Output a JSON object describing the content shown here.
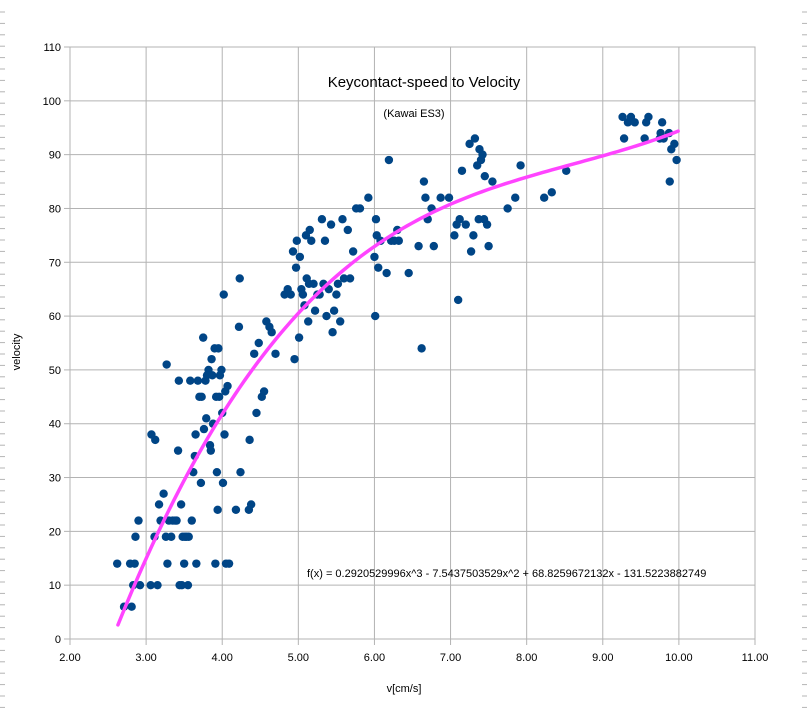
{
  "chart_data": {
    "type": "scatter",
    "title": "Keycontact-speed to Velocity",
    "subtitle": "(Kawai ES3)",
    "xlabel": "v[cm/s]",
    "ylabel": "velocity",
    "xlim": [
      2.0,
      11.0
    ],
    "ylim": [
      0,
      110
    ],
    "x_ticks": [
      "2.00",
      "3.00",
      "4.00",
      "5.00",
      "6.00",
      "7.00",
      "8.00",
      "9.00",
      "10.00",
      "11.00"
    ],
    "y_ticks": [
      "0",
      "10",
      "20",
      "30",
      "40",
      "50",
      "60",
      "70",
      "80",
      "90",
      "100",
      "110"
    ],
    "grid": true,
    "legend": "none",
    "annotation": "f(x) = 0.2920529996x^3 - 7.5437503529x^2 + 68.8259672132x - 131.5223882749",
    "marker_color": "#004586",
    "trendline_color": "#ff44ff",
    "trendline": {
      "type": "polynomial",
      "coefficients": [
        0.2920529996,
        -7.5437503529,
        68.8259672132,
        -131.5223882749
      ],
      "x_range": [
        2.63,
        9.99
      ]
    },
    "points": [
      [
        2.62,
        14
      ],
      [
        2.71,
        6
      ],
      [
        2.79,
        14
      ],
      [
        2.81,
        6
      ],
      [
        2.83,
        10
      ],
      [
        2.85,
        14
      ],
      [
        2.86,
        19
      ],
      [
        2.9,
        22
      ],
      [
        2.92,
        10
      ],
      [
        3.06,
        10
      ],
      [
        3.07,
        38
      ],
      [
        3.11,
        19
      ],
      [
        3.12,
        37
      ],
      [
        3.15,
        10
      ],
      [
        3.17,
        25
      ],
      [
        3.19,
        22
      ],
      [
        3.23,
        27
      ],
      [
        3.26,
        19
      ],
      [
        3.27,
        51
      ],
      [
        3.28,
        14
      ],
      [
        3.3,
        22
      ],
      [
        3.33,
        19
      ],
      [
        3.35,
        22
      ],
      [
        3.38,
        22
      ],
      [
        3.4,
        22
      ],
      [
        3.42,
        35
      ],
      [
        3.43,
        48
      ],
      [
        3.44,
        10
      ],
      [
        3.46,
        25
      ],
      [
        3.47,
        10
      ],
      [
        3.48,
        19
      ],
      [
        3.5,
        14
      ],
      [
        3.51,
        19
      ],
      [
        3.53,
        19
      ],
      [
        3.55,
        10
      ],
      [
        3.56,
        19
      ],
      [
        3.58,
        48
      ],
      [
        3.6,
        22
      ],
      [
        3.62,
        31
      ],
      [
        3.64,
        34
      ],
      [
        3.65,
        38
      ],
      [
        3.66,
        14
      ],
      [
        3.68,
        48
      ],
      [
        3.7,
        45
      ],
      [
        3.72,
        29
      ],
      [
        3.73,
        45
      ],
      [
        3.75,
        56
      ],
      [
        3.76,
        39
      ],
      [
        3.78,
        48
      ],
      [
        3.79,
        41
      ],
      [
        3.8,
        49
      ],
      [
        3.82,
        50
      ],
      [
        3.84,
        36
      ],
      [
        3.85,
        35
      ],
      [
        3.86,
        52
      ],
      [
        3.87,
        49
      ],
      [
        3.88,
        40
      ],
      [
        3.9,
        54
      ],
      [
        3.91,
        14
      ],
      [
        3.92,
        45
      ],
      [
        3.93,
        31
      ],
      [
        3.94,
        24
      ],
      [
        3.95,
        54
      ],
      [
        3.96,
        45
      ],
      [
        3.97,
        49
      ],
      [
        3.99,
        50
      ],
      [
        4.0,
        42
      ],
      [
        4.01,
        29
      ],
      [
        4.02,
        64
      ],
      [
        4.03,
        38
      ],
      [
        4.04,
        46
      ],
      [
        4.05,
        14
      ],
      [
        4.07,
        47
      ],
      [
        4.09,
        14
      ],
      [
        4.18,
        24
      ],
      [
        4.22,
        58
      ],
      [
        4.23,
        67
      ],
      [
        4.24,
        31
      ],
      [
        4.35,
        24
      ],
      [
        4.36,
        37
      ],
      [
        4.38,
        25
      ],
      [
        4.42,
        53
      ],
      [
        4.45,
        42
      ],
      [
        4.48,
        55
      ],
      [
        4.52,
        45
      ],
      [
        4.55,
        46
      ],
      [
        4.58,
        59
      ],
      [
        4.62,
        58
      ],
      [
        4.65,
        57
      ],
      [
        4.7,
        53
      ],
      [
        4.82,
        64
      ],
      [
        4.86,
        65
      ],
      [
        4.9,
        64
      ],
      [
        4.93,
        72
      ],
      [
        4.95,
        52
      ],
      [
        4.97,
        69
      ],
      [
        4.98,
        74
      ],
      [
        5.01,
        56
      ],
      [
        5.02,
        71
      ],
      [
        5.04,
        65
      ],
      [
        5.06,
        64
      ],
      [
        5.08,
        62
      ],
      [
        5.1,
        75
      ],
      [
        5.11,
        67
      ],
      [
        5.13,
        59
      ],
      [
        5.14,
        66
      ],
      [
        5.15,
        76
      ],
      [
        5.17,
        74
      ],
      [
        5.2,
        66
      ],
      [
        5.22,
        61
      ],
      [
        5.25,
        64
      ],
      [
        5.28,
        64
      ],
      [
        5.31,
        78
      ],
      [
        5.33,
        66
      ],
      [
        5.35,
        74
      ],
      [
        5.37,
        60
      ],
      [
        5.4,
        65
      ],
      [
        5.43,
        77
      ],
      [
        5.45,
        57
      ],
      [
        5.47,
        61
      ],
      [
        5.5,
        64
      ],
      [
        5.52,
        66
      ],
      [
        5.55,
        59
      ],
      [
        5.58,
        78
      ],
      [
        5.6,
        67
      ],
      [
        5.65,
        76
      ],
      [
        5.68,
        67
      ],
      [
        5.72,
        72
      ],
      [
        5.76,
        80
      ],
      [
        5.81,
        80
      ],
      [
        5.92,
        82
      ],
      [
        6.0,
        71
      ],
      [
        6.01,
        60
      ],
      [
        6.02,
        78
      ],
      [
        6.03,
        75
      ],
      [
        6.05,
        69
      ],
      [
        6.08,
        74
      ],
      [
        6.16,
        68
      ],
      [
        6.19,
        89
      ],
      [
        6.22,
        74
      ],
      [
        6.26,
        74
      ],
      [
        6.3,
        76
      ],
      [
        6.32,
        74
      ],
      [
        6.45,
        68
      ],
      [
        6.58,
        73
      ],
      [
        6.62,
        54
      ],
      [
        6.65,
        85
      ],
      [
        6.67,
        82
      ],
      [
        6.7,
        78
      ],
      [
        6.75,
        80
      ],
      [
        6.78,
        73
      ],
      [
        6.87,
        82
      ],
      [
        6.98,
        82
      ],
      [
        7.05,
        75
      ],
      [
        7.08,
        77
      ],
      [
        7.1,
        63
      ],
      [
        7.12,
        78
      ],
      [
        7.15,
        87
      ],
      [
        7.2,
        77
      ],
      [
        7.25,
        92
      ],
      [
        7.27,
        72
      ],
      [
        7.3,
        75
      ],
      [
        7.32,
        93
      ],
      [
        7.35,
        88
      ],
      [
        7.37,
        78
      ],
      [
        7.38,
        91
      ],
      [
        7.4,
        89
      ],
      [
        7.42,
        90
      ],
      [
        7.44,
        78
      ],
      [
        7.45,
        86
      ],
      [
        7.48,
        77
      ],
      [
        7.5,
        73
      ],
      [
        7.55,
        85
      ],
      [
        7.75,
        80
      ],
      [
        7.85,
        82
      ],
      [
        7.92,
        88
      ],
      [
        8.23,
        82
      ],
      [
        8.33,
        83
      ],
      [
        8.52,
        87
      ],
      [
        9.26,
        97
      ],
      [
        9.28,
        93
      ],
      [
        9.33,
        96
      ],
      [
        9.37,
        97
      ],
      [
        9.42,
        96
      ],
      [
        9.55,
        93
      ],
      [
        9.57,
        96
      ],
      [
        9.6,
        97
      ],
      [
        9.75,
        93
      ],
      [
        9.76,
        94
      ],
      [
        9.78,
        96
      ],
      [
        9.8,
        93
      ],
      [
        9.87,
        94
      ],
      [
        9.88,
        85
      ],
      [
        9.9,
        91
      ],
      [
        9.94,
        92
      ],
      [
        9.97,
        89
      ]
    ]
  }
}
